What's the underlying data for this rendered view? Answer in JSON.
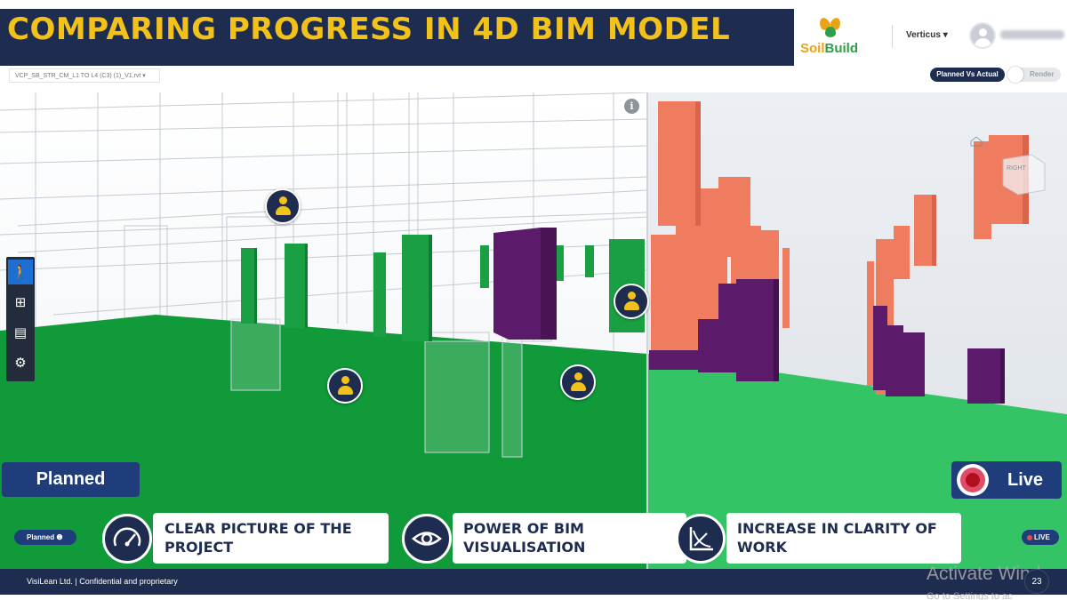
{
  "header": {
    "title": "COMPARING PROGRESS IN 4D BIM MODEL",
    "logo": {
      "part1": "Soil",
      "part2": "Build"
    },
    "user_menu": "Verticus ▾"
  },
  "toolbar": {
    "file_select": "VCP_SB_STR_CM_L1 TO L4 (C3) (1)_V1.rvt ▾",
    "planned_vs_actual": "Planned Vs Actual",
    "render": "Render"
  },
  "viewer": {
    "info_icon": "i",
    "left_label": "Planned",
    "right_label": "Live",
    "small_planned": "Planned ❶",
    "small_live": "LIVE",
    "cube_label": "RIGHT"
  },
  "side_tools": [
    {
      "icon": "person-icon",
      "glyph": "🚶"
    },
    {
      "icon": "hierarchy-icon",
      "glyph": "⊞"
    },
    {
      "icon": "document-icon",
      "glyph": "▤"
    },
    {
      "icon": "gear-icon",
      "glyph": "⚙"
    }
  ],
  "features": [
    {
      "icon": "speedometer-icon",
      "label_line1": "CLEAR PICTURE OF THE",
      "label_line2": "PROJECT"
    },
    {
      "icon": "eye-icon",
      "label_line1": "POWER OF BIM",
      "label_line2": "VISUALISATION"
    },
    {
      "icon": "graph-icon",
      "label_line1": "INCREASE IN CLARITY OF",
      "label_line2": "WORK"
    }
  ],
  "footer": {
    "text": "VisiLean Ltd. | Confidential and proprietary",
    "page_number": "23"
  },
  "watermark": {
    "line1": "Activate Wind",
    "line2": "Go to Settings to ac"
  },
  "colors": {
    "navy": "#1e2c50",
    "gold": "#f2c21b",
    "planned_green": "#109a3a",
    "live_green": "#34c465",
    "purple": "#5c1a6b",
    "salmon": "#f07c60"
  }
}
